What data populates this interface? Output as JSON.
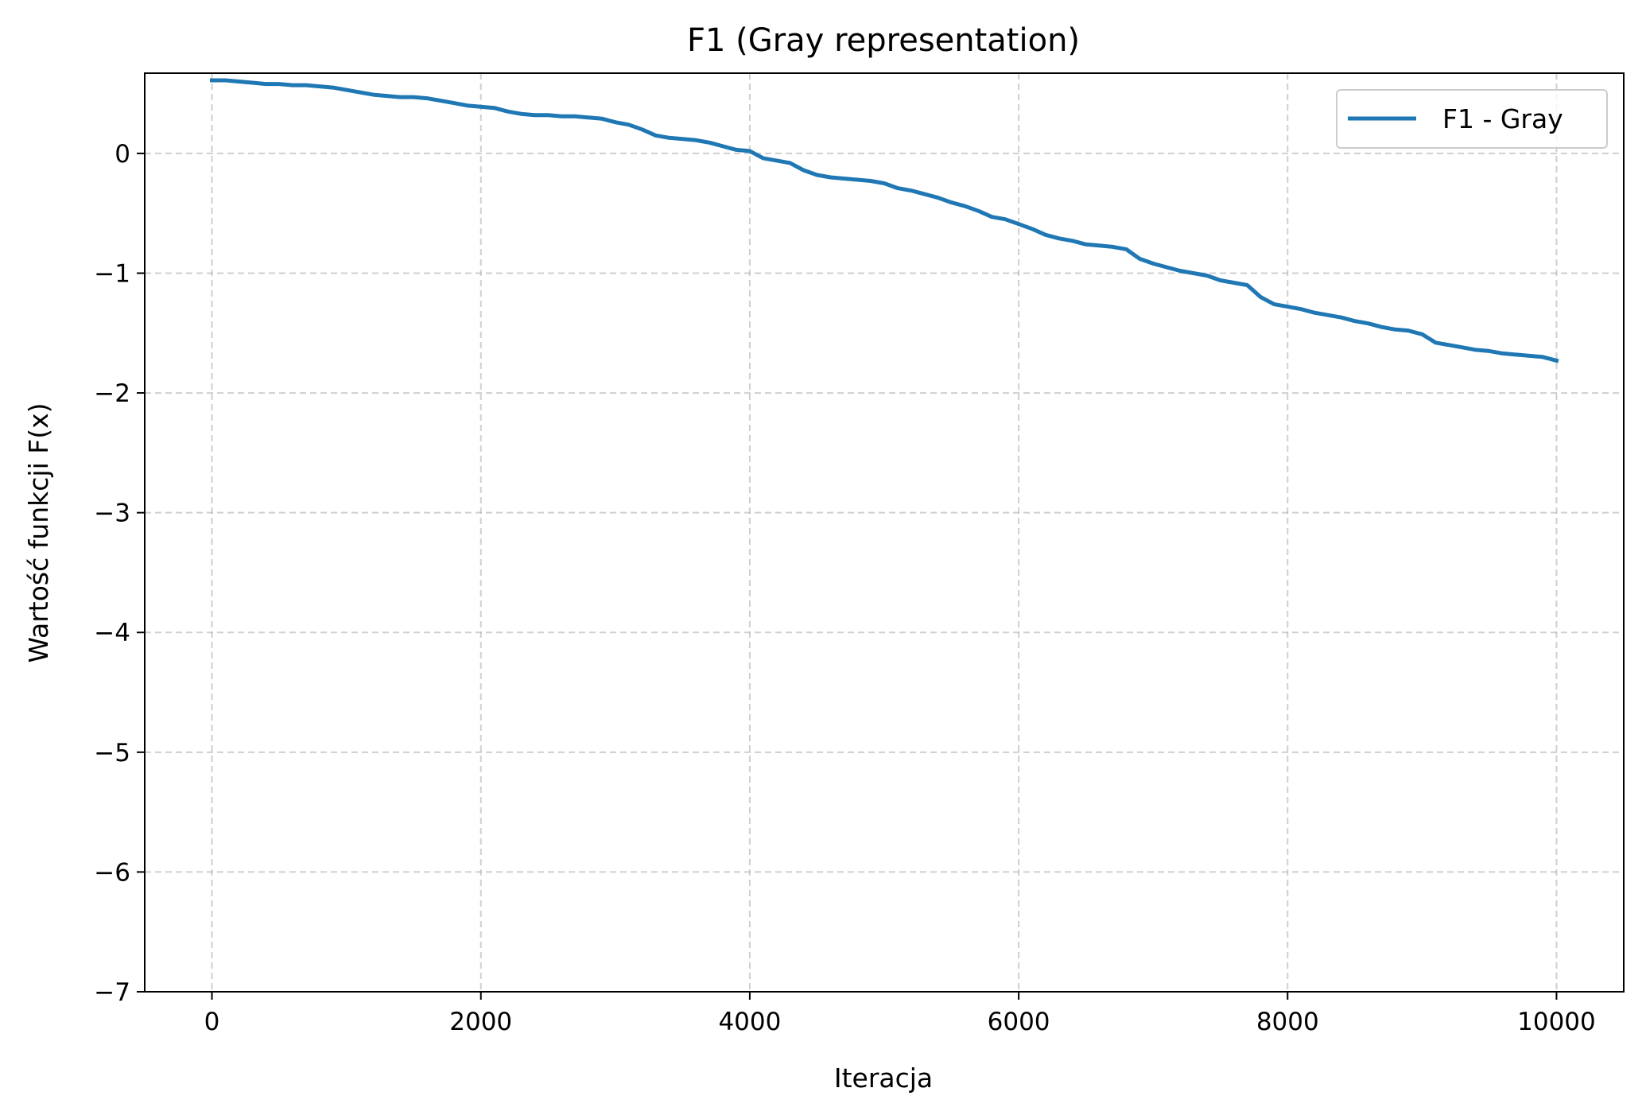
{
  "chart_data": {
    "type": "line",
    "title": "F1 (Gray representation)",
    "xlabel": "Iteracja",
    "ylabel": "Wartość funkcji F(x)",
    "xlim": [
      -500,
      10500
    ],
    "ylim": [
      -7,
      0.67
    ],
    "xticks": [
      0,
      2000,
      4000,
      6000,
      8000,
      10000
    ],
    "yticks": [
      -7,
      -6,
      -5,
      -4,
      -3,
      -2,
      -1,
      0
    ],
    "ytick_labels": [
      "−7",
      "−6",
      "−5",
      "−4",
      "−3",
      "−2",
      "−1",
      "0"
    ],
    "grid": true,
    "legend_position": "top-right",
    "series": [
      {
        "name": "F1 - Gray",
        "color": "#1f77b4",
        "x": [
          0,
          100,
          200,
          300,
          400,
          500,
          600,
          700,
          800,
          900,
          1000,
          1100,
          1200,
          1300,
          1400,
          1500,
          1600,
          1700,
          1800,
          1900,
          2000,
          2100,
          2200,
          2300,
          2400,
          2500,
          2600,
          2700,
          2800,
          2900,
          3000,
          3100,
          3200,
          3300,
          3400,
          3500,
          3600,
          3700,
          3800,
          3900,
          4000,
          4100,
          4200,
          4300,
          4400,
          4500,
          4600,
          4700,
          4800,
          4900,
          5000,
          5100,
          5200,
          5300,
          5400,
          5500,
          5600,
          5700,
          5800,
          5900,
          6000,
          6100,
          6200,
          6300,
          6400,
          6500,
          6600,
          6700,
          6800,
          6900,
          7000,
          7100,
          7200,
          7300,
          7400,
          7500,
          7600,
          7700,
          7800,
          7900,
          8000,
          8100,
          8200,
          8300,
          8400,
          8500,
          8600,
          8700,
          8800,
          8900,
          9000,
          9100,
          9200,
          9300,
          9400,
          9500,
          9600,
          9700,
          9800,
          9900,
          10000
        ],
        "y": [
          0.61,
          0.61,
          0.6,
          0.59,
          0.58,
          0.58,
          0.57,
          0.57,
          0.56,
          0.55,
          0.53,
          0.51,
          0.49,
          0.48,
          0.47,
          0.47,
          0.46,
          0.44,
          0.42,
          0.4,
          0.39,
          0.38,
          0.35,
          0.33,
          0.32,
          0.32,
          0.31,
          0.31,
          0.3,
          0.29,
          0.26,
          0.24,
          0.2,
          0.15,
          0.13,
          0.12,
          0.11,
          0.09,
          0.06,
          0.03,
          0.02,
          -0.04,
          -0.06,
          -0.08,
          -0.14,
          -0.18,
          -0.2,
          -0.21,
          -0.22,
          -0.23,
          -0.25,
          -0.29,
          -0.31,
          -0.34,
          -0.37,
          -0.41,
          -0.44,
          -0.48,
          -0.53,
          -0.55,
          -0.59,
          -0.63,
          -0.68,
          -0.71,
          -0.73,
          -0.76,
          -0.77,
          -0.78,
          -0.8,
          -0.88,
          -0.92,
          -0.95,
          -0.98,
          -1.0,
          -1.02,
          -1.06,
          -1.08,
          -1.1,
          -1.2,
          -1.26,
          -1.28,
          -1.3,
          -1.33,
          -1.35,
          -1.37,
          -1.4,
          -1.42,
          -1.45,
          -1.47,
          -1.48,
          -1.51,
          -1.58,
          -1.6,
          -1.62,
          -1.64,
          -1.65,
          -1.67,
          -1.68,
          -1.69,
          -1.7,
          -1.73
        ]
      }
    ]
  }
}
